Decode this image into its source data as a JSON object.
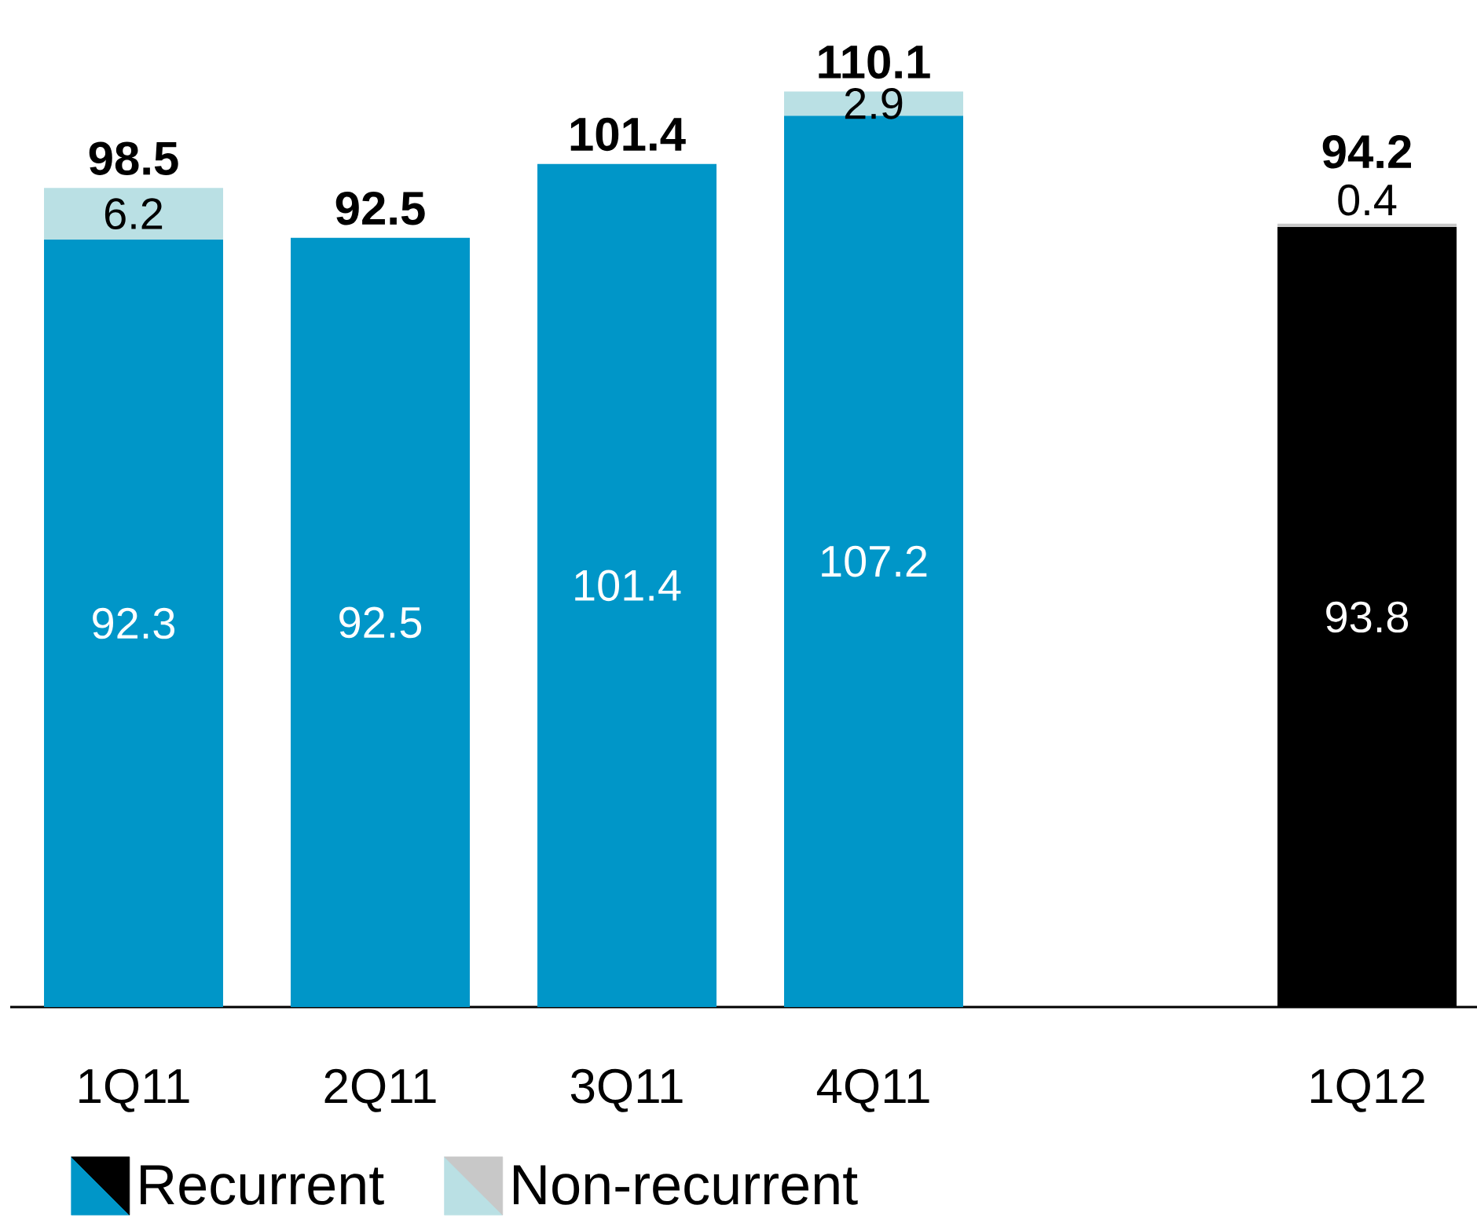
{
  "chart_data": {
    "type": "bar",
    "stacked": true,
    "categories": [
      "1Q11",
      "2Q11",
      "3Q11",
      "4Q11",
      null,
      "1Q12"
    ],
    "series": [
      {
        "name": "Recurrent",
        "colors": [
          "#0096c8",
          "#0096c8",
          "#0096c8",
          "#0096c8",
          "#0096c8",
          "#000000"
        ],
        "values": [
          92.3,
          92.5,
          101.4,
          107.2,
          null,
          93.8
        ]
      },
      {
        "name": "Non-recurrent",
        "colors": [
          "#bae0e4",
          "#bae0e4",
          "#bae0e4",
          "#bae0e4",
          "#bae0e4",
          "#c8c8c8"
        ],
        "values": [
          6.2,
          null,
          null,
          2.9,
          null,
          0.4
        ]
      }
    ],
    "data_labels": true,
    "totals": [
      "98.5",
      "92.5",
      "101.4",
      "110.1",
      null,
      "94.2"
    ],
    "legend": "bottom"
  }
}
